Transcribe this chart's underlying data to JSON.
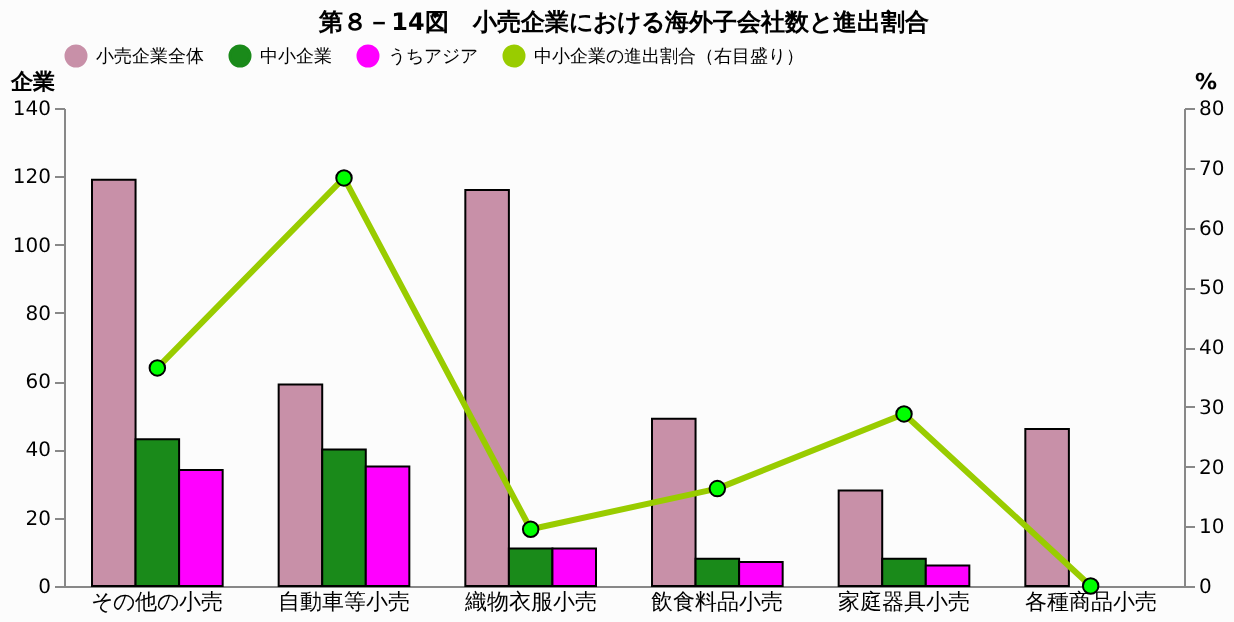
{
  "chart_data": {
    "type": "bar",
    "title": "第８－14図　小売企業における海外子会社数と進出割合",
    "categories": [
      "その他の小売",
      "自動車等小売",
      "織物衣服小売",
      "飲食料品小売",
      "家庭器具小売",
      "各種商品小売"
    ],
    "series": [
      {
        "name": "小売企業全体",
        "color": "#c890a8",
        "values": [
          119,
          59,
          116,
          49,
          28,
          46
        ]
      },
      {
        "name": "中小企業",
        "color": "#1a8a1a",
        "values": [
          43,
          40,
          11,
          8,
          8,
          0
        ]
      },
      {
        "name": "うちアジア",
        "color": "#ff00ff",
        "values": [
          34,
          35,
          11,
          7,
          6,
          0
        ]
      },
      {
        "name": "中小企業の進出割合（右目盛り）",
        "color": "#99cc00",
        "type": "line",
        "axis": "y2",
        "marker": "circle",
        "values": [
          36.5,
          68.3,
          9.5,
          16.3,
          28.8,
          0
        ]
      }
    ],
    "ylabel": "企業",
    "y2label": "%",
    "ylim": [
      0,
      140
    ],
    "yticks": [
      0,
      20,
      40,
      60,
      80,
      100,
      120,
      140
    ],
    "y2lim": [
      0,
      80
    ],
    "y2ticks": [
      0,
      10,
      20,
      30,
      40,
      50,
      60,
      70,
      80
    ],
    "grid": false,
    "legend": "top"
  }
}
